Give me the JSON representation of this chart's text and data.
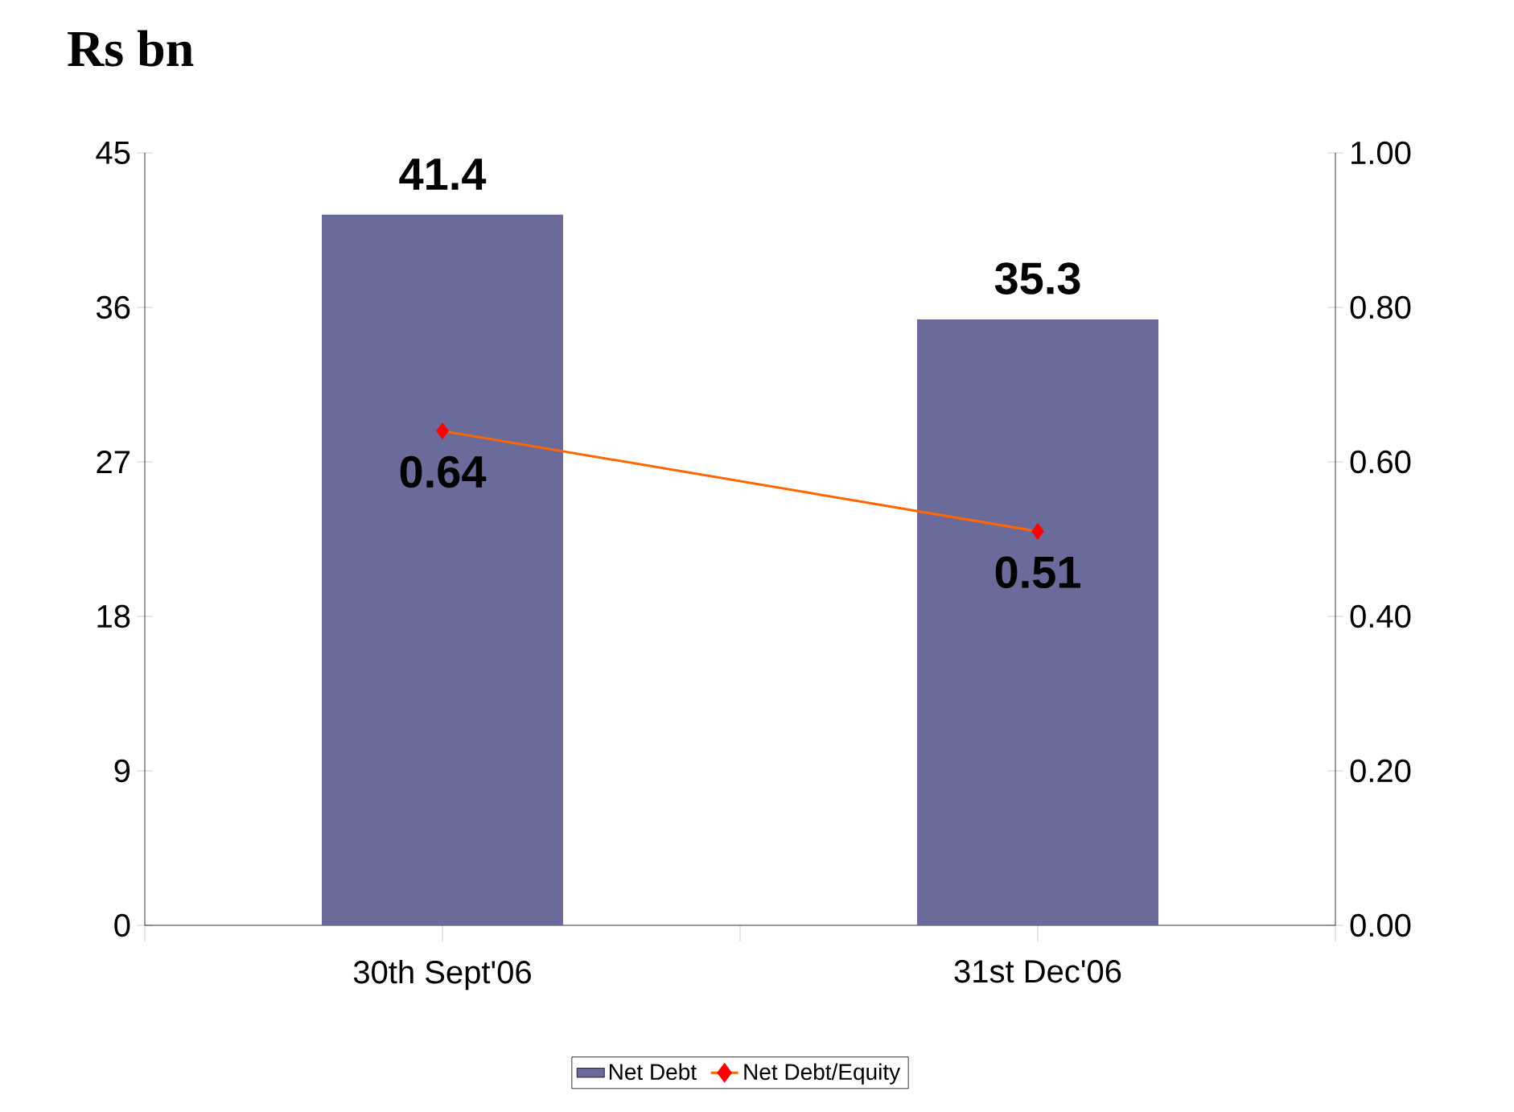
{
  "chart_data": {
    "type": "bar",
    "ylabel": "Rs bn",
    "categories": [
      "30th Sept'06",
      "31st Dec'06"
    ],
    "series": [
      {
        "name": "Net Debt",
        "color": "#6b6b9b",
        "values": [
          41.4,
          35.3
        ]
      },
      {
        "name": "Net Debt/Equity",
        "type": "line",
        "axis": "y2",
        "color": "#ff6600",
        "colors": [
          "#ff0000",
          "#ff0000"
        ],
        "values": [
          0.64,
          0.51
        ]
      }
    ],
    "marker": "diamond",
    "ylim": [
      0,
      45
    ],
    "yticks": [
      0,
      9,
      18,
      27,
      36,
      45
    ],
    "y2lim": [
      0,
      1
    ],
    "y2ticks": [
      {
        "value": 0,
        "label": "0.00"
      },
      {
        "value": 0.2,
        "label": "0.20"
      },
      {
        "value": 0.4,
        "label": "0.40"
      },
      {
        "value": 0.6,
        "label": "0.60"
      },
      {
        "value": 0.8,
        "label": "0.80"
      },
      {
        "value": 1,
        "label": "1.00"
      }
    ],
    "data_labels": true,
    "legend": "bottom"
  }
}
